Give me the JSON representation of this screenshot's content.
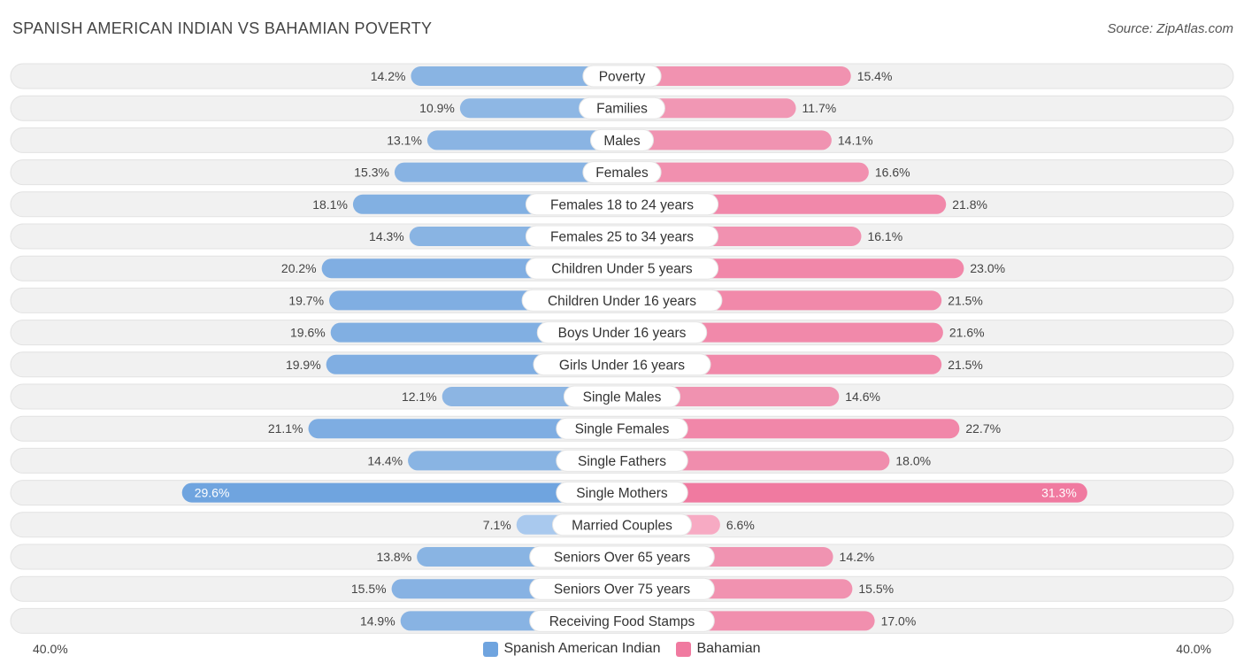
{
  "title": "SPANISH AMERICAN INDIAN VS BAHAMIAN POVERTY",
  "source": "Source: ZipAtlas.com",
  "colors": {
    "left": "#6fa4df",
    "left_light": "#a9c9ee",
    "right": "#f07aa0",
    "right_light": "#f7aac3",
    "track": "#f1f1f1"
  },
  "chart_data": {
    "type": "bar",
    "orientation": "horizontal-diverging",
    "title": "SPANISH AMERICAN INDIAN VS BAHAMIAN POVERTY",
    "axis_min_label": "40.0%",
    "axis_max_label": "40.0%",
    "xlim": [
      0,
      40
    ],
    "unit": "%",
    "categories": [
      "Poverty",
      "Families",
      "Males",
      "Females",
      "Females 18 to 24 years",
      "Females 25 to 34 years",
      "Children Under 5 years",
      "Children Under 16 years",
      "Boys Under 16 years",
      "Girls Under 16 years",
      "Single Males",
      "Single Females",
      "Single Fathers",
      "Single Mothers",
      "Married Couples",
      "Seniors Over 65 years",
      "Seniors Over 75 years",
      "Receiving Food Stamps"
    ],
    "series": [
      {
        "name": "Spanish American Indian",
        "side": "left",
        "values": [
          14.2,
          10.9,
          13.1,
          15.3,
          18.1,
          14.3,
          20.2,
          19.7,
          19.6,
          19.9,
          12.1,
          21.1,
          14.4,
          29.6,
          7.1,
          13.8,
          15.5,
          14.9
        ],
        "labels": [
          "14.2%",
          "10.9%",
          "13.1%",
          "15.3%",
          "18.1%",
          "14.3%",
          "20.2%",
          "19.7%",
          "19.6%",
          "19.9%",
          "12.1%",
          "21.1%",
          "14.4%",
          "29.6%",
          "7.1%",
          "13.8%",
          "15.5%",
          "14.9%"
        ]
      },
      {
        "name": "Bahamian",
        "side": "right",
        "values": [
          15.4,
          11.7,
          14.1,
          16.6,
          21.8,
          16.1,
          23.0,
          21.5,
          21.6,
          21.5,
          14.6,
          22.7,
          18.0,
          31.3,
          6.6,
          14.2,
          15.5,
          17.0
        ],
        "labels": [
          "15.4%",
          "11.7%",
          "14.1%",
          "16.6%",
          "21.8%",
          "16.1%",
          "23.0%",
          "21.5%",
          "21.6%",
          "21.5%",
          "14.6%",
          "22.7%",
          "18.0%",
          "31.3%",
          "6.6%",
          "14.2%",
          "15.5%",
          "17.0%"
        ]
      }
    ],
    "legend": [
      "Spanish American Indian",
      "Bahamian"
    ]
  }
}
